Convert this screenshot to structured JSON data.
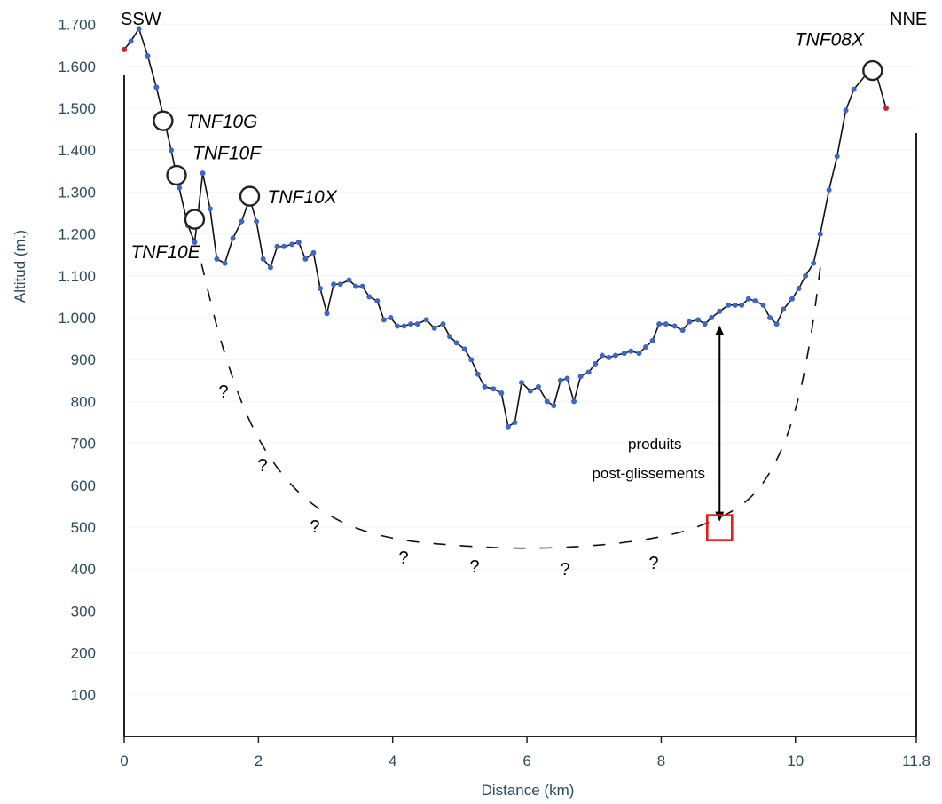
{
  "chart_data": {
    "type": "line",
    "xlabel": "Distance (km)",
    "ylabel": "Altitud (m.)",
    "xlim": [
      0,
      11.8
    ],
    "ylim": [
      0,
      1750
    ],
    "x_ticks": [
      0,
      2,
      4,
      6,
      8,
      10,
      11.8
    ],
    "x_tick_labels": [
      "0",
      "2",
      "4",
      "6",
      "8",
      "10",
      "11.8"
    ],
    "y_ticks": [
      100,
      200,
      300,
      400,
      500,
      600,
      700,
      800,
      900,
      1000,
      1100,
      1200,
      1300,
      1400,
      1500,
      1600,
      1700
    ],
    "y_tick_labels": [
      "100",
      "200",
      "300",
      "400",
      "500",
      "600",
      "700",
      "800",
      "900",
      "1.000",
      "1.100",
      "1.200",
      "1.300",
      "1.400",
      "1.500",
      "1.600",
      "1.700"
    ],
    "direction_left": "SSW",
    "direction_right": "NNE",
    "series": [
      {
        "values": [
          [
            0.0,
            1640
          ],
          [
            0.1,
            1660
          ],
          [
            0.22,
            1690
          ],
          [
            0.35,
            1625
          ],
          [
            0.48,
            1550
          ],
          [
            0.6,
            1470
          ],
          [
            0.7,
            1400
          ],
          [
            0.82,
            1310
          ],
          [
            0.95,
            1220
          ],
          [
            1.05,
            1180
          ],
          [
            1.17,
            1345
          ],
          [
            1.28,
            1260
          ],
          [
            1.38,
            1140
          ],
          [
            1.5,
            1130
          ],
          [
            1.62,
            1190
          ],
          [
            1.75,
            1230
          ],
          [
            1.87,
            1285
          ],
          [
            1.97,
            1230
          ],
          [
            2.07,
            1140
          ],
          [
            2.18,
            1120
          ],
          [
            2.28,
            1170
          ],
          [
            2.38,
            1170
          ],
          [
            2.5,
            1175
          ],
          [
            2.6,
            1180
          ],
          [
            2.7,
            1140
          ],
          [
            2.82,
            1155
          ],
          [
            2.92,
            1070
          ],
          [
            3.02,
            1010
          ],
          [
            3.12,
            1080
          ],
          [
            3.22,
            1080
          ],
          [
            3.35,
            1090
          ],
          [
            3.45,
            1075
          ],
          [
            3.55,
            1075
          ],
          [
            3.65,
            1050
          ],
          [
            3.77,
            1040
          ],
          [
            3.87,
            995
          ],
          [
            3.97,
            1000
          ],
          [
            4.07,
            980
          ],
          [
            4.17,
            980
          ],
          [
            4.27,
            985
          ],
          [
            4.37,
            985
          ],
          [
            4.5,
            995
          ],
          [
            4.62,
            975
          ],
          [
            4.75,
            985
          ],
          [
            4.85,
            955
          ],
          [
            4.95,
            940
          ],
          [
            5.07,
            925
          ],
          [
            5.17,
            900
          ],
          [
            5.27,
            865
          ],
          [
            5.37,
            835
          ],
          [
            5.5,
            830
          ],
          [
            5.62,
            820
          ],
          [
            5.72,
            740
          ],
          [
            5.82,
            750
          ],
          [
            5.92,
            845
          ],
          [
            6.05,
            825
          ],
          [
            6.17,
            835
          ],
          [
            6.3,
            800
          ],
          [
            6.4,
            790
          ],
          [
            6.5,
            850
          ],
          [
            6.6,
            855
          ],
          [
            6.7,
            800
          ],
          [
            6.8,
            860
          ],
          [
            6.92,
            870
          ],
          [
            7.02,
            890
          ],
          [
            7.12,
            910
          ],
          [
            7.22,
            905
          ],
          [
            7.32,
            910
          ],
          [
            7.45,
            915
          ],
          [
            7.55,
            920
          ],
          [
            7.67,
            915
          ],
          [
            7.77,
            930
          ],
          [
            7.87,
            945
          ],
          [
            7.97,
            985
          ],
          [
            8.07,
            985
          ],
          [
            8.2,
            980
          ],
          [
            8.32,
            970
          ],
          [
            8.42,
            990
          ],
          [
            8.55,
            995
          ],
          [
            8.65,
            985
          ],
          [
            8.75,
            1000
          ],
          [
            8.87,
            1015
          ],
          [
            9.0,
            1030
          ],
          [
            9.1,
            1030
          ],
          [
            9.2,
            1030
          ],
          [
            9.3,
            1045
          ],
          [
            9.4,
            1040
          ],
          [
            9.52,
            1030
          ],
          [
            9.62,
            1000
          ],
          [
            9.72,
            985
          ],
          [
            9.82,
            1020
          ],
          [
            9.95,
            1045
          ],
          [
            10.05,
            1070
          ],
          [
            10.15,
            1100
          ],
          [
            10.27,
            1130
          ],
          [
            10.37,
            1200
          ],
          [
            10.5,
            1305
          ],
          [
            10.62,
            1385
          ],
          [
            10.75,
            1495
          ],
          [
            10.87,
            1545
          ],
          [
            11.05,
            1580
          ],
          [
            11.2,
            1585
          ],
          [
            11.35,
            1500
          ]
        ]
      }
    ],
    "stations": [
      {
        "label": "TNF10G",
        "x": 0.58,
        "y": 1470
      },
      {
        "label": "TNF10F",
        "x": 0.78,
        "y": 1340
      },
      {
        "label": "TNF10E",
        "x": 1.05,
        "y": 1235
      },
      {
        "label": "TNF10X",
        "x": 1.87,
        "y": 1290
      },
      {
        "label": "TNF08X",
        "x": 11.15,
        "y": 1590
      }
    ],
    "inferred_base": {
      "style": "dashed",
      "points": [
        [
          1.15,
          1130
        ],
        [
          1.45,
          930
        ],
        [
          1.9,
          730
        ],
        [
          2.5,
          590
        ],
        [
          3.2,
          510
        ],
        [
          4.0,
          470
        ],
        [
          5.0,
          455
        ],
        [
          6.0,
          448
        ],
        [
          7.0,
          455
        ],
        [
          7.8,
          470
        ],
        [
          8.5,
          495
        ],
        [
          9.3,
          555
        ],
        [
          9.75,
          660
        ],
        [
          10.05,
          800
        ],
        [
          10.25,
          970
        ],
        [
          10.37,
          1120
        ]
      ],
      "question_marks": [
        "?",
        "?",
        "?",
        "?",
        "?",
        "?",
        "?"
      ]
    },
    "annotation": {
      "text_line1": "produits",
      "text_line2": "post-glissements",
      "arrow_x": 8.87,
      "arrow_top": 990,
      "arrow_bottom": 505,
      "marker_color": "#e31b1b"
    },
    "colors": {
      "line": "#111111",
      "points": "#3d67c7",
      "axis": "#222222",
      "grid": "#f0f4f8",
      "tick_text": "#2b4a5a",
      "end_points": "#d0202e"
    }
  }
}
